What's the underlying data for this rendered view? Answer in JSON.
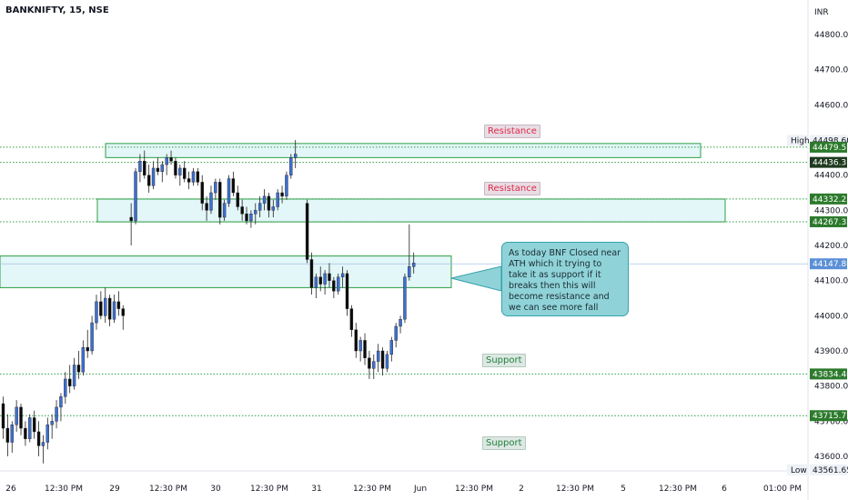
{
  "header": {
    "symbol_line": "BANKNIFTY, 15, NSE"
  },
  "colors": {
    "up": "#3d6fd1",
    "down": "#0b0b0b",
    "zone_fill": "#e3f6f8",
    "zone_border": "#2e9e44",
    "level_line": "#2e9e44",
    "tag_green": "#2c7a2c",
    "tag_dark": "#1e3a1e",
    "tag_blue": "#5a8fd6",
    "note_fill": "#8fd3d8"
  },
  "annotations": {
    "resistance_1": "Resistance",
    "resistance_2": "Resistance",
    "support_1": "Support",
    "support_2": "Support",
    "note": "As today BNF Closed near ATH which it trying to take it as support if it breaks then this will become resistance and we can see more fall"
  },
  "chart_data": {
    "type": "candlestick",
    "currency_label": "INR",
    "y_ticks": [
      "44800.00",
      "44700.00",
      "44600.00",
      "44500.00",
      "44400.00",
      "44300.00",
      "44200.00",
      "44100.00",
      "44000.00",
      "43900.00",
      "43800.00",
      "43700.00",
      "43600.00"
    ],
    "x_ticks": [
      "26",
      "12:30 PM",
      "29",
      "12:30 PM",
      "30",
      "12:30 PM",
      "31",
      "12:30 PM",
      "Jun",
      "12:30 PM",
      "2",
      "12:30 PM",
      "5",
      "12:30 PM",
      "6",
      "01:00 PM"
    ],
    "ylim": [
      43540,
      44880
    ],
    "price_tags": [
      {
        "label": "High",
        "value": "44498.60",
        "style": "high"
      },
      {
        "label": "",
        "value": "44479.55",
        "style": "green"
      },
      {
        "label": "",
        "value": "44436.35",
        "style": "dark"
      },
      {
        "label": "",
        "value": "44332.25",
        "style": "green"
      },
      {
        "label": "",
        "value": "44267.35",
        "style": "green"
      },
      {
        "label": "",
        "value": "44147.80",
        "style": "blue"
      },
      {
        "label": "",
        "value": "43834.40",
        "style": "green"
      },
      {
        "label": "",
        "value": "43715.75",
        "style": "green"
      },
      {
        "label": "Low",
        "value": "43561.65",
        "style": "low"
      }
    ],
    "levels": [
      44479.55,
      44436.35,
      44332.25,
      44267.35,
      43834.4,
      43715.75
    ],
    "zones": [
      {
        "top": 44490,
        "bottom": 44450
      },
      {
        "top": 44332,
        "bottom": 44267
      },
      {
        "top": 44170,
        "bottom": 44080
      }
    ],
    "candles": [
      [
        43750,
        43770,
        43650,
        43680
      ],
      [
        43680,
        43720,
        43600,
        43640
      ],
      [
        43640,
        43700,
        43610,
        43690
      ],
      [
        43690,
        43760,
        43670,
        43740
      ],
      [
        43740,
        43750,
        43660,
        43680
      ],
      [
        43680,
        43700,
        43630,
        43650
      ],
      [
        43650,
        43720,
        43640,
        43710
      ],
      [
        43710,
        43730,
        43650,
        43670
      ],
      [
        43670,
        43700,
        43600,
        43630
      ],
      [
        43630,
        43660,
        43580,
        43640
      ],
      [
        43640,
        43710,
        43620,
        43690
      ],
      [
        43690,
        43720,
        43650,
        43700
      ],
      [
        43700,
        43760,
        43680,
        43740
      ],
      [
        43740,
        43780,
        43700,
        43770
      ],
      [
        43770,
        43840,
        43750,
        43820
      ],
      [
        43820,
        43860,
        43780,
        43800
      ],
      [
        43800,
        43880,
        43790,
        43860
      ],
      [
        43860,
        43900,
        43820,
        43840
      ],
      [
        43840,
        43930,
        43830,
        43910
      ],
      [
        43910,
        43960,
        43880,
        43900
      ],
      [
        43900,
        44000,
        43890,
        43980
      ],
      [
        43980,
        44060,
        43960,
        44040
      ],
      [
        44040,
        44070,
        43990,
        44000
      ],
      [
        44000,
        44080,
        43980,
        44050
      ],
      [
        44050,
        44060,
        43970,
        43990
      ],
      [
        43990,
        44060,
        43980,
        44040
      ],
      [
        44040,
        44070,
        44000,
        44020
      ],
      [
        44020,
        44030,
        43960,
        44000
      ],
      [
        44280,
        44320,
        44200,
        44270
      ],
      [
        44270,
        44420,
        44260,
        44410
      ],
      [
        44410,
        44460,
        44380,
        44440
      ],
      [
        44440,
        44470,
        44390,
        44400
      ],
      [
        44400,
        44430,
        44350,
        44370
      ],
      [
        44370,
        44440,
        44360,
        44420
      ],
      [
        44420,
        44450,
        44400,
        44410
      ],
      [
        44410,
        44440,
        44380,
        44430
      ],
      [
        44430,
        44460,
        44400,
        44450
      ],
      [
        44450,
        44470,
        44430,
        44440
      ],
      [
        44440,
        44450,
        44390,
        44400
      ],
      [
        44400,
        44430,
        44370,
        44420
      ],
      [
        44420,
        44440,
        44380,
        44390
      ],
      [
        44390,
        44410,
        44360,
        44380
      ],
      [
        44380,
        44420,
        44370,
        44410
      ],
      [
        44410,
        44420,
        44370,
        44380
      ],
      [
        44380,
        44400,
        44300,
        44320
      ],
      [
        44320,
        44340,
        44270,
        44300
      ],
      [
        44300,
        44370,
        44290,
        44350
      ],
      [
        44350,
        44390,
        44330,
        44380
      ],
      [
        44380,
        44390,
        44260,
        44280
      ],
      [
        44280,
        44330,
        44270,
        44320
      ],
      [
        44320,
        44400,
        44310,
        44390
      ],
      [
        44390,
        44410,
        44340,
        44350
      ],
      [
        44350,
        44370,
        44300,
        44310
      ],
      [
        44310,
        44330,
        44270,
        44290
      ],
      [
        44290,
        44310,
        44260,
        44270
      ],
      [
        44270,
        44300,
        44250,
        44290
      ],
      [
        44290,
        44320,
        44260,
        44300
      ],
      [
        44300,
        44340,
        44280,
        44320
      ],
      [
        44320,
        44360,
        44300,
        44340
      ],
      [
        44340,
        44350,
        44280,
        44300
      ],
      [
        44300,
        44330,
        44280,
        44310
      ],
      [
        44310,
        44360,
        44300,
        44350
      ],
      [
        44350,
        44370,
        44320,
        44340
      ],
      [
        44340,
        44410,
        44330,
        44400
      ],
      [
        44400,
        44460,
        44390,
        44450
      ],
      [
        44450,
        44500,
        44420,
        44460
      ],
      [
        44320,
        44330,
        44150,
        44160
      ],
      [
        44160,
        44180,
        44060,
        44080
      ],
      [
        44080,
        44120,
        44050,
        44110
      ],
      [
        44110,
        44140,
        44070,
        44090
      ],
      [
        44090,
        44130,
        44060,
        44120
      ],
      [
        44120,
        44150,
        44080,
        44100
      ],
      [
        44100,
        44110,
        44050,
        44070
      ],
      [
        44070,
        44120,
        44060,
        44110
      ],
      [
        44110,
        44140,
        44080,
        44120
      ],
      [
        44120,
        44130,
        44000,
        44020
      ],
      [
        44020,
        44030,
        43940,
        43960
      ],
      [
        43960,
        43980,
        43880,
        43900
      ],
      [
        43900,
        43940,
        43870,
        43930
      ],
      [
        43930,
        43950,
        43860,
        43880
      ],
      [
        43880,
        43900,
        43820,
        43850
      ],
      [
        43850,
        43890,
        43820,
        43870
      ],
      [
        43870,
        43920,
        43840,
        43900
      ],
      [
        43900,
        43910,
        43830,
        43850
      ],
      [
        43850,
        43900,
        43840,
        43890
      ],
      [
        43890,
        43940,
        43870,
        43930
      ],
      [
        43930,
        43980,
        43910,
        43970
      ],
      [
        43970,
        44000,
        43950,
        43990
      ],
      [
        43990,
        44120,
        43980,
        44110
      ],
      [
        44110,
        44260,
        44100,
        44140
      ],
      [
        44140,
        44180,
        44120,
        44150
      ]
    ]
  }
}
